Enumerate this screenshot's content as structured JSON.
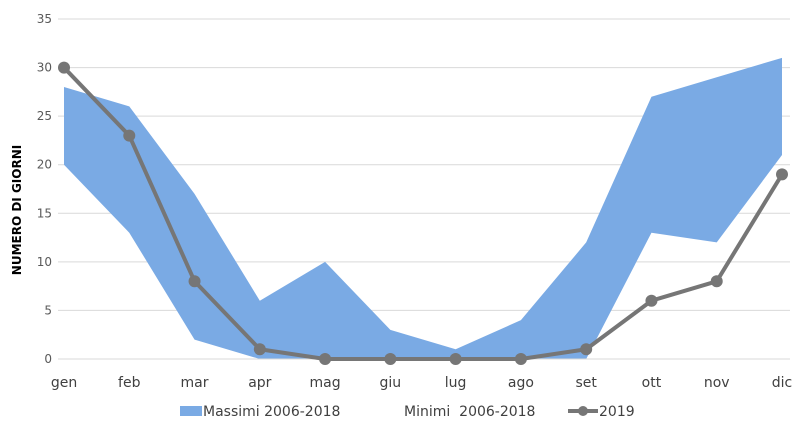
{
  "chart_data": {
    "type": "area",
    "categories": [
      "gen",
      "feb",
      "mar",
      "apr",
      "mag",
      "giu",
      "lug",
      "ago",
      "set",
      "ott",
      "nov",
      "dic"
    ],
    "ylabel": "NUMERO DI GIORNI",
    "ylim": [
      0,
      35
    ],
    "yticks": [
      0,
      5,
      10,
      15,
      20,
      25,
      30,
      35
    ],
    "grid": true,
    "legend_position": "bottom",
    "band": {
      "upper_name": "Massimi 2006-2018",
      "lower_name": "Minimi  2006-2018",
      "upper": [
        28,
        26,
        17,
        6,
        10,
        3,
        1,
        4,
        12,
        27,
        29,
        31
      ],
      "lower": [
        20,
        13,
        2,
        0,
        0,
        0,
        0,
        0,
        0,
        13,
        12,
        21
      ],
      "color": "#7aaae4"
    },
    "series": [
      {
        "name": "2019",
        "values": [
          30,
          23,
          8,
          1,
          0,
          0,
          0,
          0,
          1,
          6,
          8,
          19
        ],
        "color": "#767676"
      }
    ]
  }
}
